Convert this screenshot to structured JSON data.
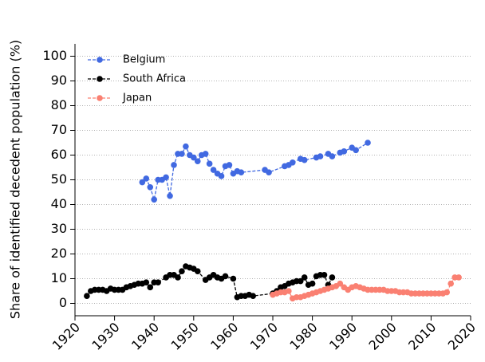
{
  "chart_data": {
    "type": "line",
    "y_label": "Share of identified decedent population (%)",
    "xlim": [
      1920,
      2020
    ],
    "ylim": [
      -5,
      105
    ],
    "xticks": [
      1920,
      1930,
      1940,
      1950,
      1960,
      1970,
      1980,
      1990,
      2000,
      2010,
      2020
    ],
    "yticks": [
      0,
      10,
      20,
      30,
      40,
      50,
      60,
      70,
      80,
      90,
      100
    ],
    "grid": "y",
    "legend": "upper-left",
    "series": [
      {
        "name": "Belgium",
        "color": "#4169e1",
        "x": [
          1937,
          1938,
          1939,
          1940,
          1941,
          1942,
          1943,
          1944,
          1945,
          1946,
          1947,
          1948,
          1949,
          1950,
          1951,
          1952,
          1953,
          1954,
          1955,
          1956,
          1957,
          1958,
          1959,
          1960,
          1961,
          1962,
          1968,
          1969,
          1973,
          1974,
          1975,
          1977,
          1978,
          1981,
          1982,
          1984,
          1985,
          1987,
          1988,
          1990,
          1991,
          1994
        ],
        "values": [
          49,
          50.5,
          47,
          42,
          50,
          50,
          51,
          43.5,
          56,
          60.5,
          60.5,
          63.5,
          60,
          59,
          57.5,
          60,
          60.5,
          56.5,
          54,
          52.5,
          51.5,
          55.5,
          56,
          52.5,
          53.5,
          53,
          54,
          53,
          55.5,
          56,
          57,
          58.5,
          58,
          59,
          59.5,
          60.5,
          59.5,
          61,
          61.5,
          63,
          62,
          65
        ]
      },
      {
        "name": "South Africa",
        "color": "#000000",
        "x": [
          1923,
          1924,
          1925,
          1926,
          1927,
          1928,
          1929,
          1930,
          1931,
          1932,
          1933,
          1934,
          1935,
          1936,
          1937,
          1938,
          1939,
          1940,
          1941,
          1943,
          1944,
          1945,
          1946,
          1947,
          1948,
          1949,
          1950,
          1951,
          1953,
          1954,
          1955,
          1956,
          1957,
          1958,
          1960,
          1961,
          1962,
          1963,
          1964,
          1965,
          1970,
          1971,
          1972,
          1973,
          1974,
          1975,
          1976,
          1977,
          1978,
          1979,
          1980,
          1981,
          1982,
          1983,
          1984,
          1985
        ],
        "values": [
          3,
          5,
          5.5,
          5.5,
          5.5,
          5,
          6,
          5.5,
          5.5,
          5.5,
          6.5,
          7,
          7.5,
          8,
          8,
          8.5,
          6.5,
          8.5,
          8.5,
          10.5,
          11.5,
          11.5,
          10.5,
          13,
          15,
          14.5,
          14,
          13,
          9.5,
          10.5,
          11.5,
          10.5,
          10,
          11,
          10,
          2.5,
          3,
          3,
          3.5,
          3,
          4,
          5,
          6.5,
          7,
          8,
          8.5,
          9,
          9,
          10.5,
          7.5,
          8,
          11,
          11.5,
          11.5,
          7.5,
          10.5
        ]
      },
      {
        "name": "Japan",
        "color": "#fa8072",
        "x": [
          1970,
          1971,
          1972,
          1973,
          1974,
          1975,
          1976,
          1977,
          1978,
          1979,
          1980,
          1981,
          1982,
          1983,
          1984,
          1985,
          1986,
          1987,
          1988,
          1989,
          1990,
          1991,
          1992,
          1993,
          1994,
          1995,
          1996,
          1997,
          1998,
          1999,
          2000,
          2001,
          2002,
          2003,
          2004,
          2005,
          2006,
          2007,
          2008,
          2009,
          2010,
          2011,
          2012,
          2013,
          2014,
          2015,
          2016,
          2017
        ],
        "values": [
          3.5,
          4,
          4.5,
          4.5,
          5,
          2,
          2.5,
          2.5,
          3,
          3.5,
          4,
          4.5,
          5,
          5.5,
          6,
          6.5,
          7,
          8,
          6.5,
          5.5,
          6.5,
          7,
          6.5,
          6,
          5.5,
          5.5,
          5.5,
          5.5,
          5.5,
          5,
          5,
          5,
          4.5,
          4.5,
          4.5,
          4,
          4,
          4,
          4,
          4,
          4,
          4,
          4,
          4,
          4.5,
          8,
          10.5,
          10.5
        ]
      }
    ]
  }
}
